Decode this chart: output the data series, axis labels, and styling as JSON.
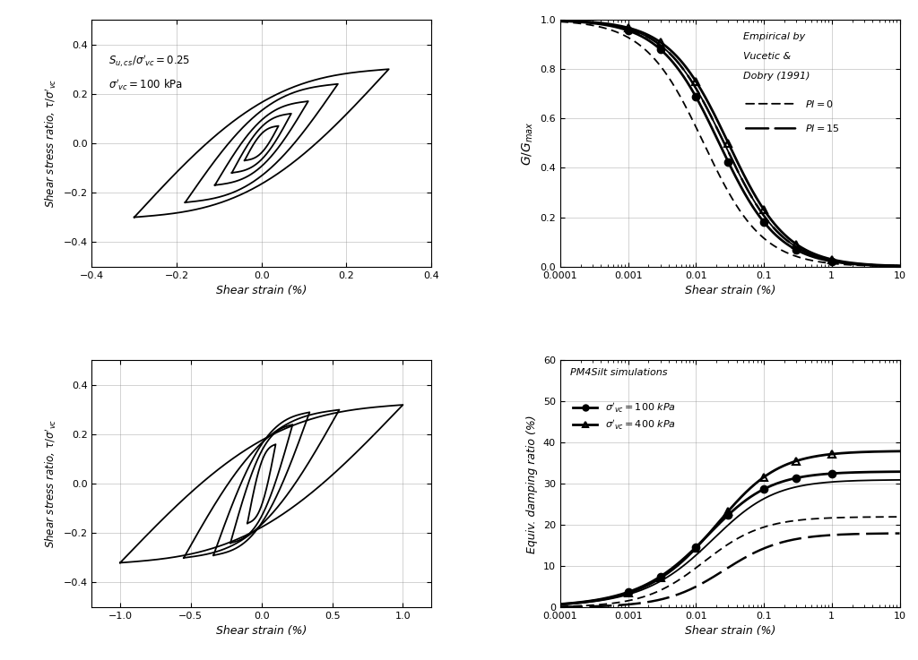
{
  "fig_width": 10.24,
  "fig_height": 7.37,
  "bg_color": "#ffffff",
  "tl_xlim": [
    -0.4,
    0.4
  ],
  "tl_ylim": [
    -0.5,
    0.5
  ],
  "tl_xticks": [
    -0.4,
    -0.2,
    0.0,
    0.2,
    0.4
  ],
  "tl_yticks": [
    -0.4,
    -0.2,
    0.0,
    0.2,
    0.4
  ],
  "tl_ann1": "$S_{u,cs}/\\sigma'_{vc} = 0.25$",
  "tl_ann2": "$\\sigma'_{vc} = 100$ kPa",
  "bl_xlim": [
    -1.2,
    1.2
  ],
  "bl_ylim": [
    -0.5,
    0.5
  ],
  "bl_xticks": [
    -1.0,
    -0.5,
    0.0,
    0.5,
    1.0
  ],
  "bl_yticks": [
    -0.4,
    -0.2,
    0.0,
    0.2,
    0.4
  ],
  "tr_ylim": [
    0.0,
    1.0
  ],
  "tr_yticks": [
    0.0,
    0.2,
    0.4,
    0.6,
    0.8,
    1.0
  ],
  "br_ylim": [
    0,
    60
  ],
  "br_yticks": [
    0,
    10,
    20,
    30,
    40,
    50,
    60
  ],
  "xlabel_strain": "Shear strain (%)",
  "ylabel_stress": "Shear stress ratio, $\\tau/\\sigma'_{vc}$",
  "ylabel_G": "$G/G_{max}$",
  "ylabel_damp": "Equiv. damping ratio (%)",
  "lw": 1.3,
  "lw2": 2.0,
  "ms": 6,
  "tr_legend_title": "Empirical by\nVucetic &\nDobry (1991)",
  "br_legend_title": "PM4Silt simulations",
  "label_100": "$\\sigma'_{vc} = 100$ kPa",
  "label_400": "$\\sigma'_{vc} = 400$ kPa",
  "label_PI0": "$PI = 0$",
  "label_PI15": "$PI = 15$"
}
